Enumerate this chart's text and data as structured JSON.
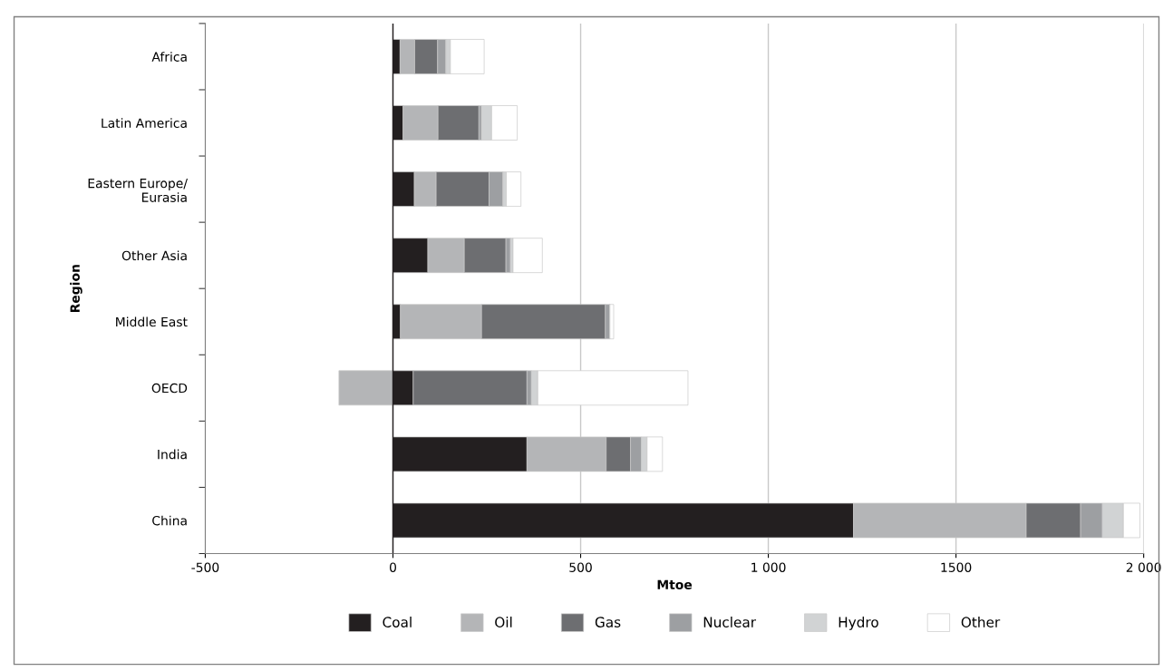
{
  "chart_data": {
    "type": "bar",
    "orientation": "horizontal",
    "stacked": true,
    "xlabel": "Mtoe",
    "ylabel": "Region",
    "categories": [
      "Africa",
      "Latin America",
      "Eastern Europe/\nEurasia",
      "Other Asia",
      "Middle East",
      "OECD",
      "India",
      "China"
    ],
    "series": [
      {
        "name": "Coal",
        "color": "#231f20",
        "values": [
          19,
          27,
          57,
          93,
          20,
          54,
          357,
          1227
        ]
      },
      {
        "name": "Oil",
        "color": "#b4b5b7",
        "values": [
          39,
          93,
          58,
          97,
          216,
          -144,
          211,
          460
        ]
      },
      {
        "name": "Gas",
        "color": "#6d6e71",
        "values": [
          61,
          109,
          141,
          111,
          330,
          303,
          65,
          145
        ]
      },
      {
        "name": "Nuclear",
        "color": "#9d9fa2",
        "values": [
          22,
          7,
          37,
          12,
          12,
          12,
          29,
          58
        ]
      },
      {
        "name": "Hydro",
        "color": "#d1d3d4",
        "values": [
          12,
          27,
          9,
          7,
          0,
          17,
          15,
          56
        ]
      },
      {
        "name": "Other",
        "color": "#ffffff",
        "values": [
          90,
          68,
          39,
          78,
          10,
          400,
          41,
          44
        ]
      }
    ],
    "xlim": [
      -500,
      2000
    ],
    "xticks": [
      -500,
      0,
      500,
      {
        "value": 1000,
        "label": "1 000"
      },
      1500,
      {
        "value": 2000,
        "label": "2 000"
      }
    ],
    "ref_lines": [
      {
        "axis": "x",
        "value": 0,
        "color": "#231f20"
      }
    ],
    "grid": "x",
    "legend": "bottom"
  }
}
